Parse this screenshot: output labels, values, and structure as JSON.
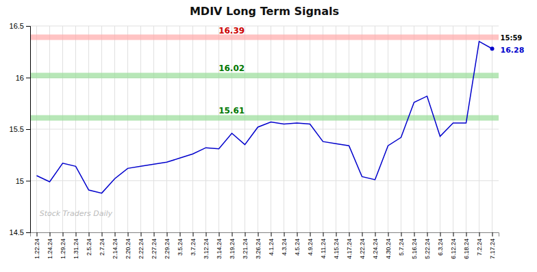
{
  "chart_data": {
    "type": "line",
    "title": "MDIV Long Term Signals",
    "categories": [
      "1.22.24",
      "1.24.24",
      "1.29.24",
      "1.31.24",
      "2.5.24",
      "2.7.24",
      "2.14.24",
      "2.20.24",
      "2.22.24",
      "2.27.24",
      "2.29.24",
      "3.5.24",
      "3.7.24",
      "3.12.24",
      "3.14.24",
      "3.19.24",
      "3.21.24",
      "3.26.24",
      "4.1.24",
      "4.3.24",
      "4.5.24",
      "4.9.24",
      "4.11.24",
      "4.15.24",
      "4.17.24",
      "4.22.24",
      "4.24.24",
      "4.30.24",
      "5.7.24",
      "5.16.24",
      "5.22.24",
      "6.3.24",
      "6.12.24",
      "6.18.24",
      "7.2.24",
      "7.17.24"
    ],
    "values": [
      15.05,
      14.99,
      15.17,
      15.14,
      14.91,
      14.88,
      15.02,
      15.12,
      15.14,
      15.16,
      15.18,
      15.22,
      15.26,
      15.32,
      15.31,
      15.46,
      15.35,
      15.52,
      15.57,
      15.55,
      15.56,
      15.55,
      15.38,
      15.36,
      15.34,
      15.04,
      15.01,
      15.34,
      15.42,
      15.76,
      15.82,
      15.43,
      15.56,
      15.56,
      16.35,
      16.28
    ],
    "color": "#0000cc",
    "hlines": [
      {
        "value": 16.39,
        "label": "16.39",
        "color": "#ffaaaa",
        "label_color": "#cc0000"
      },
      {
        "value": 16.02,
        "label": "16.02",
        "color": "#99dd99",
        "label_color": "#007700"
      },
      {
        "value": 15.61,
        "label": "15.61",
        "color": "#99dd99",
        "label_color": "#007700"
      }
    ],
    "annotations": [
      {
        "text": "15:59"
      },
      {
        "text": "16.28",
        "color": "#0000cc"
      }
    ],
    "watermark": "Stock Traders Daily",
    "ylim": [
      14.5,
      16.5
    ],
    "yticks": [
      14.5,
      15,
      15.5,
      16,
      16.5
    ],
    "grid": true
  }
}
